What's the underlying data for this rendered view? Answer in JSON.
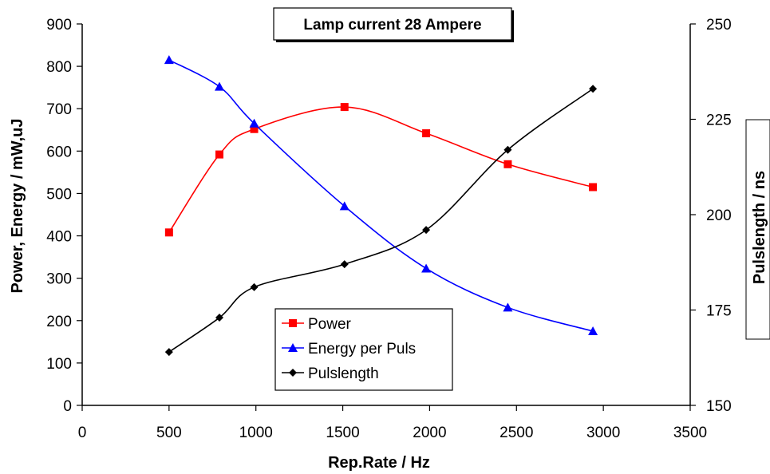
{
  "chart_data": {
    "type": "line",
    "title": "Lamp current 28 Ampere",
    "xlabel": "Rep.Rate / Hz",
    "ylabel": "Power, Energy /  mW,uJ",
    "y2label": "Pulslength / ns",
    "xlim": [
      0,
      3500
    ],
    "ylim": [
      0,
      900
    ],
    "y2lim": [
      150,
      250
    ],
    "xticks": [
      0,
      500,
      1000,
      1500,
      2000,
      2500,
      3000,
      3500
    ],
    "yticks": [
      0,
      100,
      200,
      300,
      400,
      500,
      600,
      700,
      800,
      900
    ],
    "y2ticks": [
      150,
      175,
      200,
      225,
      250
    ],
    "grid": false,
    "legend_position": "bottom-center",
    "series": [
      {
        "name": "Power",
        "axis": "left",
        "color": "#ff0000",
        "marker": "square",
        "x": [
          500,
          790,
          990,
          1510,
          1980,
          2450,
          2940
        ],
        "y": [
          408,
          592,
          652,
          704,
          642,
          569,
          515
        ]
      },
      {
        "name": "Energy per Puls",
        "axis": "left",
        "color": "#0000ff",
        "marker": "triangle",
        "x": [
          500,
          790,
          990,
          1510,
          1980,
          2450,
          2940
        ],
        "y": [
          815,
          752,
          665,
          470,
          323,
          231,
          175
        ]
      },
      {
        "name": "Pulslength",
        "axis": "right",
        "color": "#000000",
        "marker": "diamond",
        "x": [
          500,
          790,
          990,
          1510,
          1980,
          2450,
          2940
        ],
        "y": [
          164,
          173,
          181,
          187,
          196,
          217,
          233
        ]
      }
    ]
  }
}
